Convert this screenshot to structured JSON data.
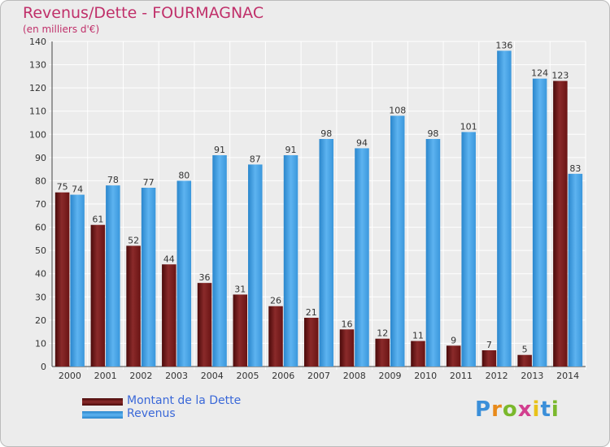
{
  "header": {
    "title": "Revenus/Dette - FOURMAGNAC",
    "subtitle": "(en milliers d'€)"
  },
  "legend": {
    "items": [
      {
        "label": "Montant de la Dette",
        "color": "#7a1c1c"
      },
      {
        "label": "Revenus",
        "color": "#4aa3e8"
      }
    ]
  },
  "logo": {
    "text": "Proxiti"
  },
  "chart_data": {
    "type": "bar",
    "title": "Revenus/Dette - FOURMAGNAC",
    "ylabel": "(en milliers d'€)",
    "xlabel": "",
    "ylim": [
      0,
      140
    ],
    "ytick_step": 10,
    "grid": true,
    "legend_position": "bottom-left",
    "categories": [
      "2000",
      "2001",
      "2002",
      "2003",
      "2004",
      "2005",
      "2006",
      "2007",
      "2008",
      "2009",
      "2010",
      "2011",
      "2012",
      "2013",
      "2014"
    ],
    "series": [
      {
        "name": "Montant de la Dette",
        "color": "#7a1c1c",
        "values": [
          75,
          61,
          52,
          44,
          36,
          31,
          26,
          21,
          16,
          12,
          11,
          9,
          7,
          5,
          123
        ]
      },
      {
        "name": "Revenus",
        "color": "#4aa3e8",
        "values": [
          74,
          78,
          77,
          80,
          91,
          87,
          91,
          98,
          94,
          108,
          98,
          101,
          136,
          124,
          83
        ]
      }
    ]
  }
}
